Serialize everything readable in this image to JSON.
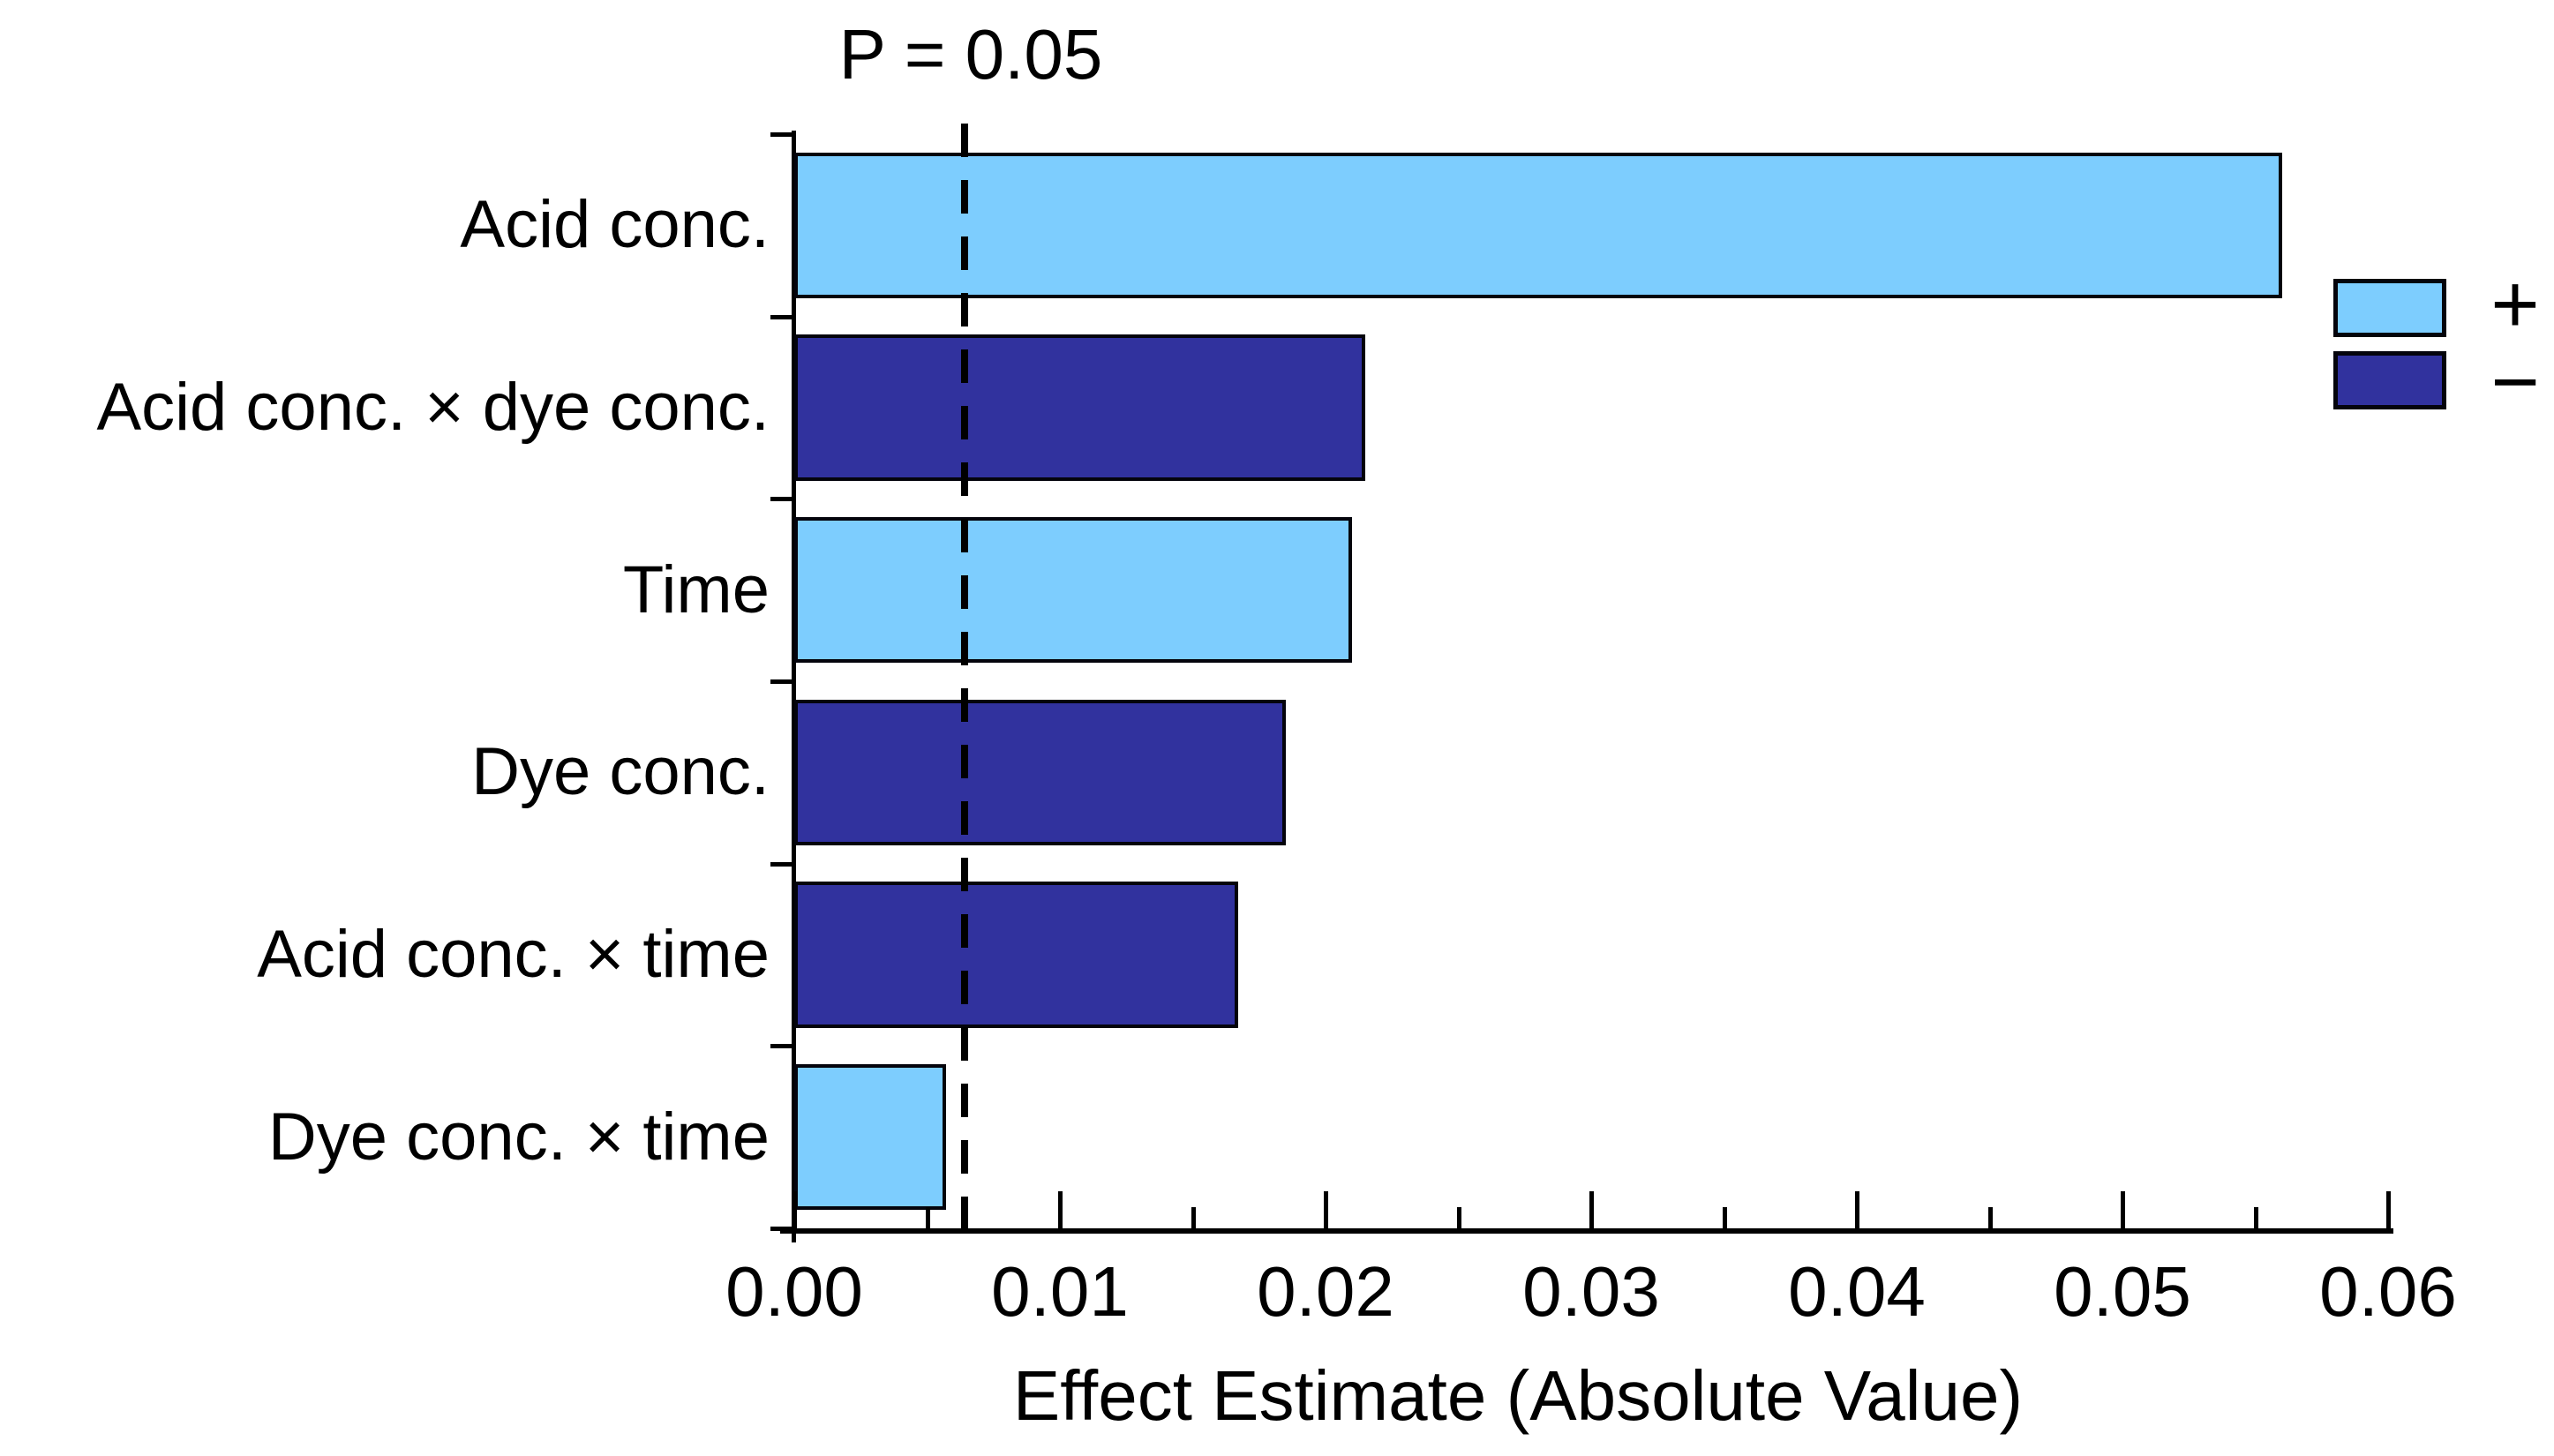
{
  "chart_data": {
    "type": "bar",
    "orientation": "horizontal",
    "title": "",
    "xlabel": "Effect Estimate (Absolute Value)",
    "ylabel": "",
    "categories": [
      "Acid conc.",
      "Acid conc. × dye conc.",
      "Time",
      "Dye conc.",
      "Acid conc. × time",
      "Dye conc. × time"
    ],
    "values": [
      0.056,
      0.0215,
      0.021,
      0.0185,
      0.0167,
      0.0057
    ],
    "signs": [
      "+",
      "−",
      "+",
      "−",
      "−",
      "+"
    ],
    "colors": {
      "positive": "#7DCDFE",
      "negative": "#31329E",
      "outline": "#04040C"
    },
    "xlim": [
      0,
      0.06
    ],
    "xtick_labels": [
      "0.00",
      "0.01",
      "0.02",
      "0.03",
      "0.04",
      "0.05",
      "0.06"
    ],
    "minor_xtick_step": 0.005,
    "grid": false,
    "reference_line": {
      "value": 0.0064,
      "label": "P = 0.05",
      "style": "dashed"
    },
    "legend": [
      {
        "label": "+",
        "color": "#7DCDFE",
        "meaning": "positive effect"
      },
      {
        "label": "−",
        "color": "#31329E",
        "meaning": "negative effect"
      }
    ],
    "legend_position": "right"
  }
}
